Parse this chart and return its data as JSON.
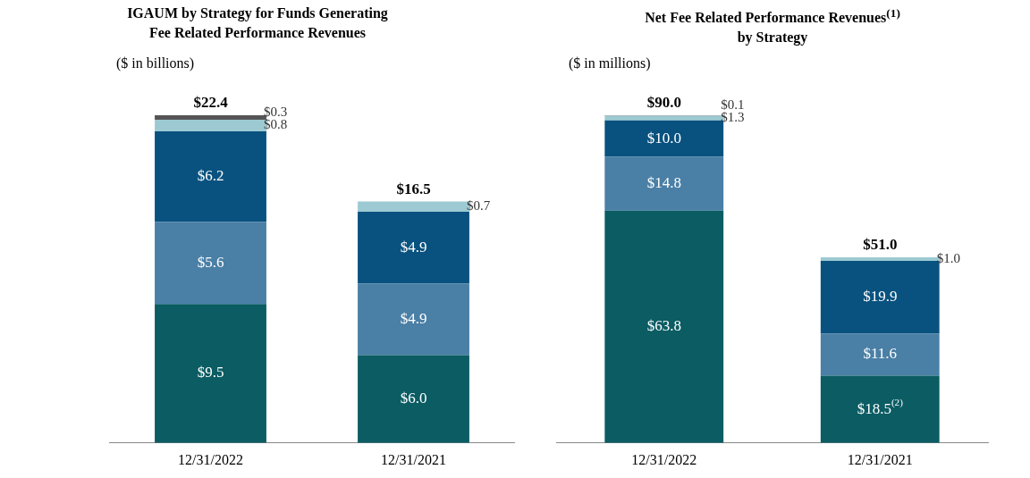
{
  "chart_data": [
    {
      "type": "bar",
      "title": "IGAUM by Strategy for Funds Generating\nFee Related Performance Revenues",
      "subtitle": "($ in billions)",
      "stacked": true,
      "grid": false,
      "legend": false,
      "categories": [
        "12/31/2022",
        "12/31/2021"
      ],
      "series": [
        {
          "color": "#0b5c63",
          "values": [
            9.5,
            6.0
          ],
          "value_labels": [
            "$9.5",
            "$6.0"
          ]
        },
        {
          "color": "#4a7fa6",
          "values": [
            5.6,
            4.9
          ],
          "value_labels": [
            "$5.6",
            "$4.9"
          ]
        },
        {
          "color": "#09527f",
          "values": [
            6.2,
            4.9
          ],
          "value_labels": [
            "$6.2",
            "$4.9"
          ]
        },
        {
          "color": "#9dcad2",
          "values": [
            0.8,
            0.7
          ],
          "value_labels": [
            "$0.8",
            "$0.7"
          ]
        },
        {
          "color": "#555555",
          "values": [
            0.3,
            null
          ],
          "value_labels": [
            "$0.3",
            null
          ]
        }
      ],
      "totals": [
        "$22.4",
        "$16.5"
      ]
    },
    {
      "type": "bar",
      "title": "Net Fee Related Performance Revenues$^{(1)}$\nby Strategy",
      "subtitle": "($ in millions)",
      "stacked": true,
      "grid": false,
      "legend": false,
      "categories": [
        "12/31/2022",
        "12/31/2021"
      ],
      "series": [
        {
          "color": "#0b5c63",
          "values": [
            63.8,
            18.5
          ],
          "value_labels": [
            "$63.8",
            "$18.5$^{(2)}$"
          ]
        },
        {
          "color": "#4a7fa6",
          "values": [
            14.8,
            11.6
          ],
          "value_labels": [
            "$14.8",
            "$11.6"
          ]
        },
        {
          "color": "#09527f",
          "values": [
            10.0,
            19.9
          ],
          "value_labels": [
            "$10.0",
            "$19.9"
          ]
        },
        {
          "color": "#9dcad2",
          "values": [
            1.3,
            1.0
          ],
          "value_labels": [
            "$1.3",
            "$1.0"
          ]
        },
        {
          "color": "#555555",
          "values": [
            0.1,
            null
          ],
          "value_labels": [
            "$0.1",
            null
          ]
        }
      ],
      "totals": [
        "$90.0",
        "$51.0"
      ]
    }
  ]
}
